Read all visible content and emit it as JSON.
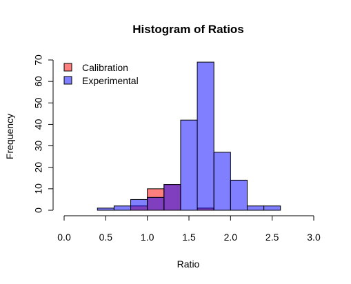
{
  "chart_data": {
    "type": "bar",
    "subtype": "overlaid-histogram",
    "title": "Histogram of Ratios",
    "xlabel": "Ratio",
    "ylabel": "Frequency",
    "xlim": [
      0,
      3
    ],
    "ylim": [
      0,
      70
    ],
    "x_ticks": [
      "0.0",
      "0.5",
      "1.0",
      "1.5",
      "2.0",
      "2.5",
      "3.0"
    ],
    "y_ticks": [
      "0",
      "10",
      "20",
      "30",
      "40",
      "50",
      "60",
      "70"
    ],
    "legend_position": "top-left",
    "series": [
      {
        "name": "Calibration",
        "color": "#ff000080",
        "bins": [
          {
            "x0": 0.8,
            "x1": 1.0,
            "count": 2
          },
          {
            "x0": 1.0,
            "x1": 1.2,
            "count": 10
          },
          {
            "x0": 1.2,
            "x1": 1.4,
            "count": 12
          },
          {
            "x0": 1.6,
            "x1": 1.8,
            "count": 1
          }
        ]
      },
      {
        "name": "Experimental",
        "color": "#0000ff80",
        "bins": [
          {
            "x0": 0.4,
            "x1": 0.6,
            "count": 1
          },
          {
            "x0": 0.6,
            "x1": 0.8,
            "count": 2
          },
          {
            "x0": 0.8,
            "x1": 1.0,
            "count": 5
          },
          {
            "x0": 1.0,
            "x1": 1.2,
            "count": 6
          },
          {
            "x0": 1.2,
            "x1": 1.4,
            "count": 12
          },
          {
            "x0": 1.4,
            "x1": 1.6,
            "count": 42
          },
          {
            "x0": 1.6,
            "x1": 1.8,
            "count": 69
          },
          {
            "x0": 1.8,
            "x1": 2.0,
            "count": 27
          },
          {
            "x0": 2.0,
            "x1": 2.2,
            "count": 14
          },
          {
            "x0": 2.2,
            "x1": 2.4,
            "count": 2
          },
          {
            "x0": 2.4,
            "x1": 2.6,
            "count": 2
          }
        ]
      }
    ]
  }
}
